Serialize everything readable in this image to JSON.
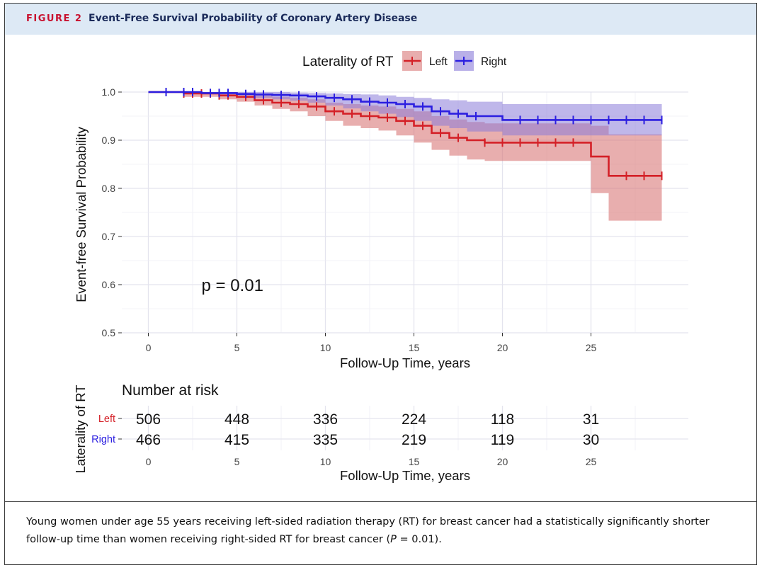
{
  "figure": {
    "label": "FIGURE 2",
    "title": "Event-Free Survival Probability of Coronary Artery Disease",
    "caption_pre": "Young women under age 55 years receiving left-sided radiation therapy (RT) for breast cancer had a statistically significantly shorter follow-up time than women receiving right-sided RT for breast cancer (",
    "caption_p": "P",
    "caption_post": " = 0.01)."
  },
  "colors": {
    "left": "#d42027",
    "right": "#2b1ee0",
    "left_band": "#d87878",
    "right_band": "#8a7bd8"
  },
  "chart_data": {
    "type": "line",
    "title": "",
    "xlabel": "Follow-Up Time, years",
    "ylabel": "Event-free Survival Probability",
    "xlim": [
      -1.5,
      30.5
    ],
    "ylim": [
      0.5,
      1.0
    ],
    "x_ticks": [
      0,
      5,
      10,
      15,
      20,
      25
    ],
    "y_ticks": [
      0.5,
      0.6,
      0.7,
      0.8,
      0.9,
      1.0
    ],
    "y_tick_labels": [
      "0.5",
      "0.6",
      "0.7",
      "0.8",
      "0.9",
      "1.0"
    ],
    "grid": true,
    "legend": {
      "title": "Laterality of RT",
      "position": "top"
    },
    "annotation": "p = 0.01",
    "series": [
      {
        "name": "Left",
        "x": [
          0,
          2,
          4,
          5,
          6,
          7,
          8,
          9,
          10,
          11,
          12,
          13,
          14,
          15,
          16,
          17,
          18,
          19,
          20,
          25,
          26,
          29
        ],
        "y": [
          1.0,
          0.997,
          0.993,
          0.99,
          0.983,
          0.978,
          0.975,
          0.97,
          0.96,
          0.955,
          0.95,
          0.947,
          0.94,
          0.93,
          0.915,
          0.905,
          0.9,
          0.895,
          0.895,
          0.866,
          0.826,
          0.826
        ],
        "ci_lower": [
          1.0,
          0.99,
          0.985,
          0.98,
          0.972,
          0.965,
          0.96,
          0.95,
          0.94,
          0.93,
          0.925,
          0.92,
          0.91,
          0.895,
          0.88,
          0.868,
          0.86,
          0.857,
          0.857,
          0.79,
          0.733,
          0.733
        ],
        "ci_upper": [
          1.0,
          1.0,
          1.0,
          0.997,
          0.993,
          0.99,
          0.988,
          0.985,
          0.978,
          0.975,
          0.972,
          0.97,
          0.965,
          0.96,
          0.95,
          0.943,
          0.938,
          0.935,
          0.935,
          0.93,
          0.912,
          0.912
        ],
        "censor_x": [
          1,
          2,
          2.5,
          3,
          3.5,
          4,
          4.5,
          5.5,
          6.5,
          7.5,
          8.5,
          9.5,
          10.5,
          11.5,
          12.5,
          13.5,
          14.5,
          15.5,
          16.5,
          17.5,
          19,
          20,
          21,
          22,
          23,
          24,
          27,
          28,
          29
        ]
      },
      {
        "name": "Right",
        "x": [
          0,
          3,
          5,
          6,
          7,
          8,
          9,
          10,
          11,
          12,
          13,
          14,
          15,
          16,
          17,
          18,
          20,
          29
        ],
        "y": [
          1.0,
          0.998,
          0.996,
          0.995,
          0.994,
          0.993,
          0.991,
          0.988,
          0.985,
          0.98,
          0.978,
          0.975,
          0.97,
          0.96,
          0.955,
          0.95,
          0.942,
          0.942
        ],
        "ci_lower": [
          1.0,
          0.995,
          0.99,
          0.988,
          0.985,
          0.982,
          0.978,
          0.972,
          0.966,
          0.96,
          0.955,
          0.948,
          0.94,
          0.93,
          0.925,
          0.918,
          0.91,
          0.91
        ],
        "ci_upper": [
          1.0,
          1.0,
          1.0,
          1.0,
          1.0,
          0.999,
          0.998,
          0.997,
          0.996,
          0.995,
          0.993,
          0.99,
          0.988,
          0.985,
          0.983,
          0.98,
          0.975,
          0.975
        ],
        "censor_x": [
          1,
          2,
          2.5,
          3.5,
          4,
          4.5,
          5.5,
          6,
          6.5,
          7.5,
          8.5,
          9.5,
          10.5,
          11.5,
          12.5,
          13.5,
          14.5,
          15.5,
          16.5,
          17.5,
          18.5,
          21,
          22,
          23,
          24,
          25,
          26,
          27,
          28,
          29
        ]
      }
    ],
    "risk_table": {
      "title": "Number at risk",
      "ylabel": "Laterality of RT",
      "xlabel": "Follow-Up Time, years",
      "times": [
        0,
        5,
        10,
        15,
        20,
        25
      ],
      "rows": [
        {
          "name": "Left",
          "values": [
            "506",
            "448",
            "336",
            "224",
            "118",
            "31"
          ]
        },
        {
          "name": "Right",
          "values": [
            "466",
            "415",
            "335",
            "219",
            "119",
            "30"
          ]
        }
      ]
    }
  }
}
